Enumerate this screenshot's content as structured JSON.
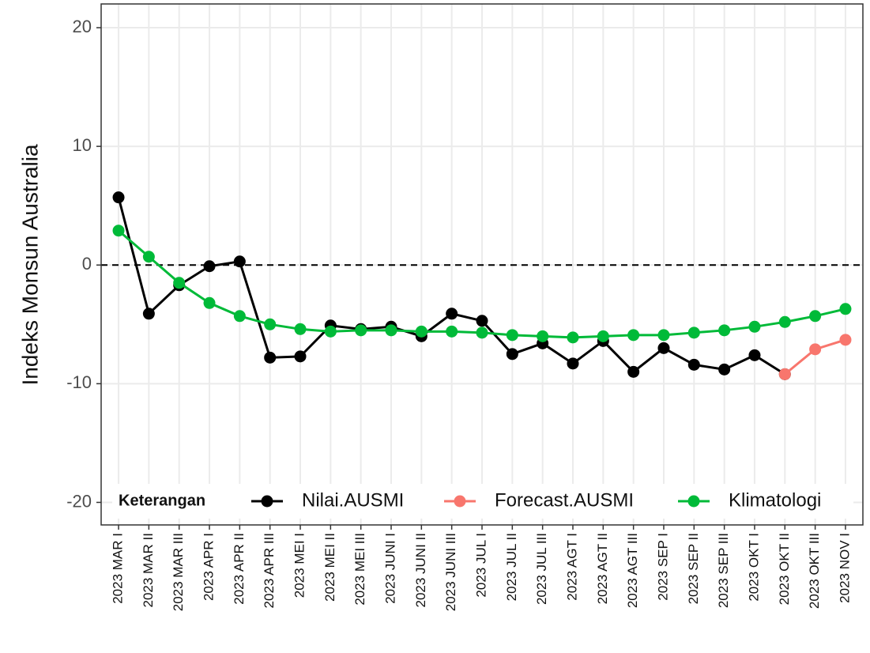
{
  "chart_data": {
    "type": "line",
    "y_label": "Indeks Monsun Australia",
    "categories": [
      "2023 MAR I",
      "2023 MAR II",
      "2023 MAR III",
      "2023 APR I",
      "2023 APR II",
      "2023 APR III",
      "2023 MEI I",
      "2023 MEI II",
      "2023 MEI III",
      "2023 JUNI I",
      "2023 JUNI II",
      "2023 JUNI III",
      "2023 JUL I",
      "2023 JUL II",
      "2023 JUL III",
      "2023 AGT I",
      "2023 AGT II",
      "2023 AGT III",
      "2023 SEP I",
      "2023 SEP II",
      "2023 SEP III",
      "2023 OKT I",
      "2023 OKT II",
      "2023 OKT III",
      "2023 NOV I"
    ],
    "series": [
      {
        "name": "Nilai.AUSMI",
        "color": "#000000",
        "values": [
          5.7,
          -4.1,
          -1.7,
          -0.1,
          0.3,
          -7.8,
          -7.7,
          -5.1,
          -5.4,
          -5.2,
          -6.0,
          -4.1,
          -4.7,
          -7.5,
          -6.6,
          -8.3,
          -6.4,
          -9.0,
          -7.0,
          -8.4,
          -8.8,
          -7.6,
          -9.2,
          null,
          null
        ]
      },
      {
        "name": "Forecast.AUSMI",
        "color": "#f8766d",
        "values": [
          null,
          null,
          null,
          null,
          null,
          null,
          null,
          null,
          null,
          null,
          null,
          null,
          null,
          null,
          null,
          null,
          null,
          null,
          null,
          null,
          null,
          null,
          -9.2,
          -7.1,
          -6.3
        ]
      },
      {
        "name": "Klimatologi",
        "color": "#00ba38",
        "values": [
          2.9,
          0.7,
          -1.5,
          -3.2,
          -4.3,
          -5.0,
          -5.4,
          -5.6,
          -5.5,
          -5.5,
          -5.6,
          -5.6,
          -5.7,
          -5.9,
          -6.0,
          -6.1,
          -6.0,
          -5.9,
          -5.9,
          -5.7,
          -5.5,
          -5.2,
          -4.8,
          -4.3,
          -3.7
        ]
      }
    ],
    "legend_title": "Keterangan",
    "legend_position": "bottom",
    "hline": 0,
    "ylim": [
      -21.9,
      22
    ],
    "yticks": [
      -20,
      -10,
      0,
      10,
      20
    ],
    "grid": true
  }
}
